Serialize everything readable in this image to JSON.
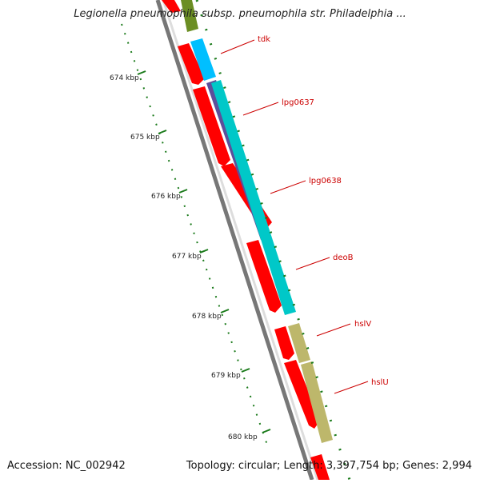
{
  "header": {
    "title": "Legionella pneumophila subsp. pneumophila str. Philadelphia ..."
  },
  "footer": {
    "accession": "Accession: NC_002942",
    "summary": "Topology: circular; Length: 3,397,754 bp; Genes: 2,994"
  },
  "ruler": {
    "ticks": [
      "674 kbp",
      "675 kbp",
      "676 kbp",
      "677 kbp",
      "678 kbp",
      "679 kbp",
      "680 kbp"
    ]
  },
  "genes": [
    {
      "name": "tdk"
    },
    {
      "name": "lpg0637"
    },
    {
      "name": "lpg0638"
    },
    {
      "name": "deoB"
    },
    {
      "name": "hslV"
    },
    {
      "name": "hslU"
    }
  ],
  "colors": {
    "cds": "#ff0000",
    "tdk": "#00bfff",
    "lpg0637": "#5c4f9a",
    "lpg0638": "#00c8c8",
    "deoB": "#00c8c8",
    "hsl": "#bdb76b",
    "top_gene": "#6b8e23",
    "backbone": "#777777",
    "ruler": "#1a7a1a",
    "label": "#cc0000"
  }
}
